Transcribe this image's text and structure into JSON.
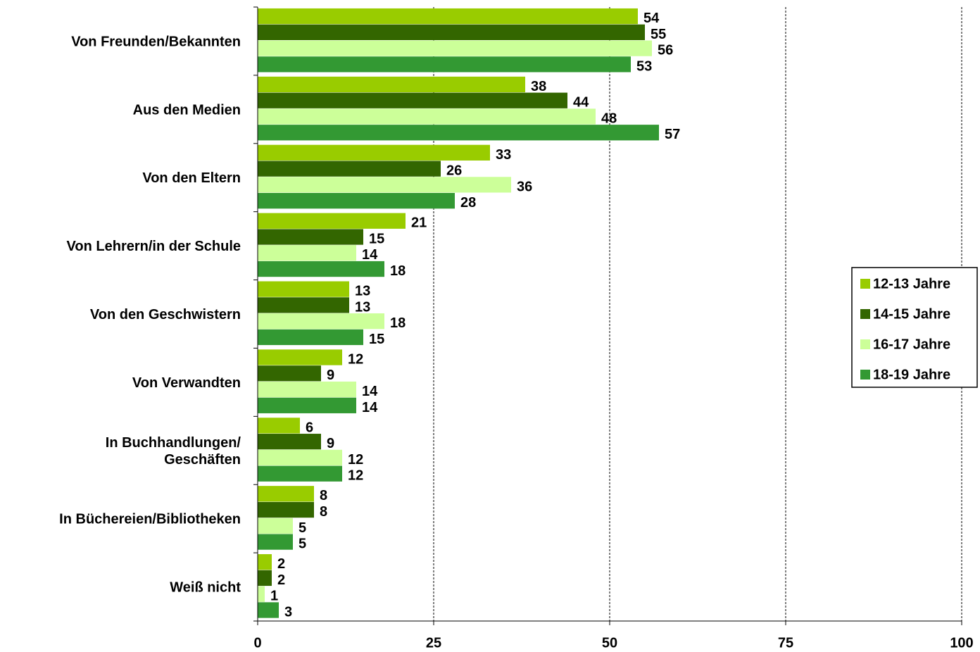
{
  "chart_data": {
    "type": "hbar",
    "categories": [
      "Von Freunden/Bekannten",
      "Aus den Medien",
      "Von den Eltern",
      "Von Lehrern/in der Schule",
      "Von den Geschwistern",
      "Von Verwandten",
      "In Buchhandlungen/\nGeschäften",
      "In Büchereien/Bibliotheken",
      "Weiß nicht"
    ],
    "series": [
      {
        "name": "12-13 Jahre",
        "color": "#99cc00",
        "values": [
          54,
          38,
          33,
          21,
          13,
          12,
          6,
          8,
          2
        ]
      },
      {
        "name": "14-15 Jahre",
        "color": "#336600",
        "values": [
          55,
          44,
          26,
          15,
          13,
          9,
          9,
          8,
          2
        ]
      },
      {
        "name": "16-17 Jahre",
        "color": "#ccff99",
        "values": [
          56,
          48,
          36,
          14,
          18,
          14,
          12,
          5,
          1
        ]
      },
      {
        "name": "18-19 Jahre",
        "color": "#339933",
        "values": [
          53,
          57,
          28,
          18,
          15,
          14,
          12,
          5,
          3
        ]
      }
    ],
    "xlim": [
      0,
      100
    ],
    "xticks": [
      0,
      25,
      50,
      75,
      100
    ],
    "grid": true,
    "legend": "right"
  }
}
